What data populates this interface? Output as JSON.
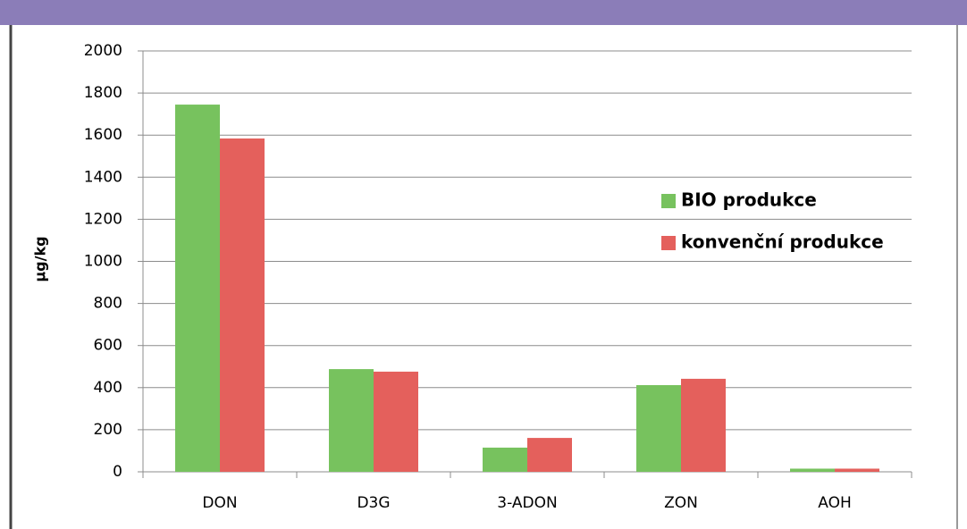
{
  "chart_data": {
    "type": "bar",
    "ylabel": "µg/kg",
    "categories": [
      "DON",
      "D3G",
      "3-ADON",
      "ZON",
      "AOH"
    ],
    "series": [
      {
        "name": "BIO produkce",
        "color": "#77c25e",
        "values": [
          1745,
          488,
          115,
          412,
          15
        ]
      },
      {
        "name": "konvenční produkce",
        "color": "#e4605c",
        "values": [
          1584,
          476,
          161,
          442,
          15
        ]
      }
    ],
    "ylim": [
      0,
      2000
    ],
    "yticks": [
      0,
      200,
      400,
      600,
      800,
      1000,
      1200,
      1400,
      1600,
      1800,
      2000
    ],
    "grid": true,
    "legend": "right"
  }
}
